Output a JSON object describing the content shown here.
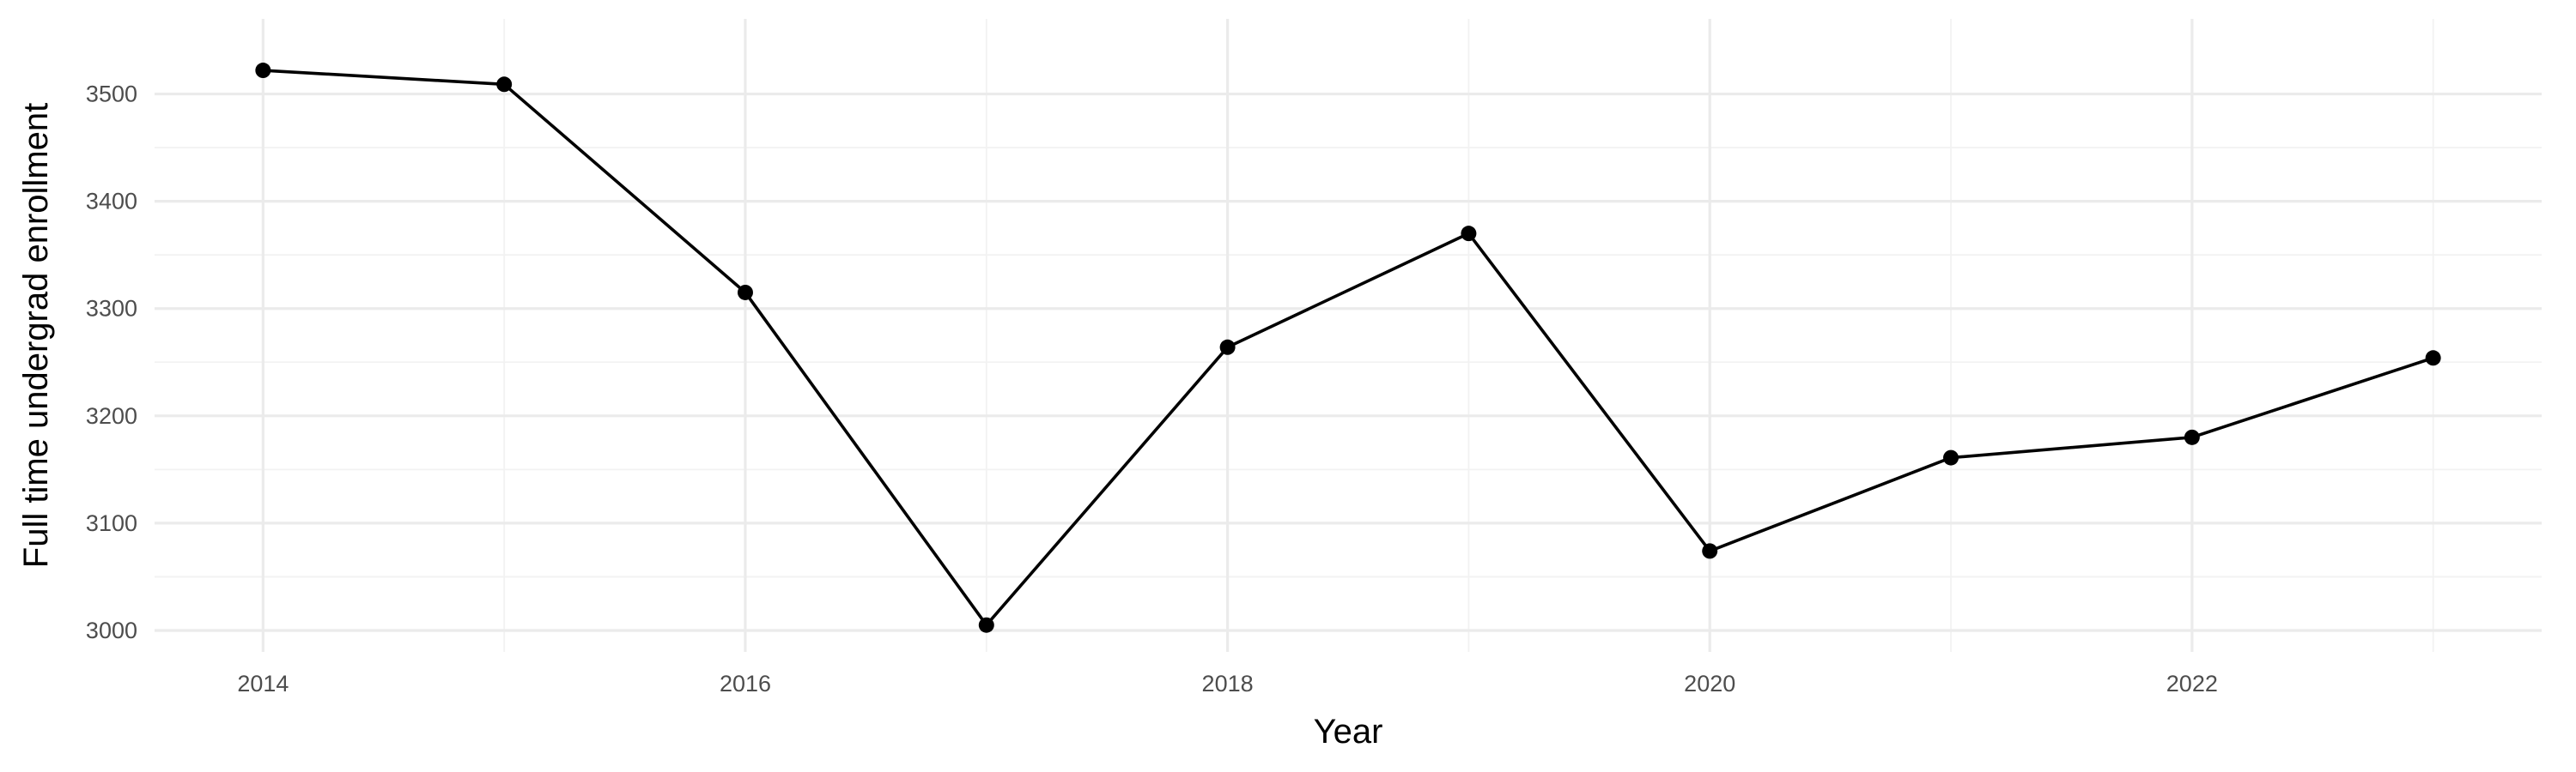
{
  "chart_data": {
    "type": "line",
    "xlabel": "Year",
    "ylabel": "Full time undergrad enrollment",
    "x": [
      2014,
      2015,
      2016,
      2017,
      2018,
      2019,
      2020,
      2021,
      2022,
      2023
    ],
    "series": [
      {
        "values": [
          3522,
          3509,
          3315,
          3005,
          3264,
          3370,
          3074,
          3161,
          3180,
          3254
        ]
      }
    ],
    "xlim": [
      2013.55,
      2023.45
    ],
    "ylim": [
      2980,
      3570
    ],
    "x_ticks": [
      2014,
      2016,
      2018,
      2020,
      2022
    ],
    "x_tick_labels": [
      "2014",
      "2016",
      "2018",
      "2020",
      "2022"
    ],
    "y_ticks": [
      3000,
      3100,
      3200,
      3300,
      3400,
      3500
    ],
    "y_tick_labels": [
      "3000",
      "3100",
      "3200",
      "3300",
      "3400",
      "3500"
    ],
    "grid": true,
    "legend": "none",
    "colors": {
      "line": "#000000",
      "point": "#000000",
      "grid_major": "#ebebeb",
      "grid_minor": "#f2f2f2"
    }
  }
}
